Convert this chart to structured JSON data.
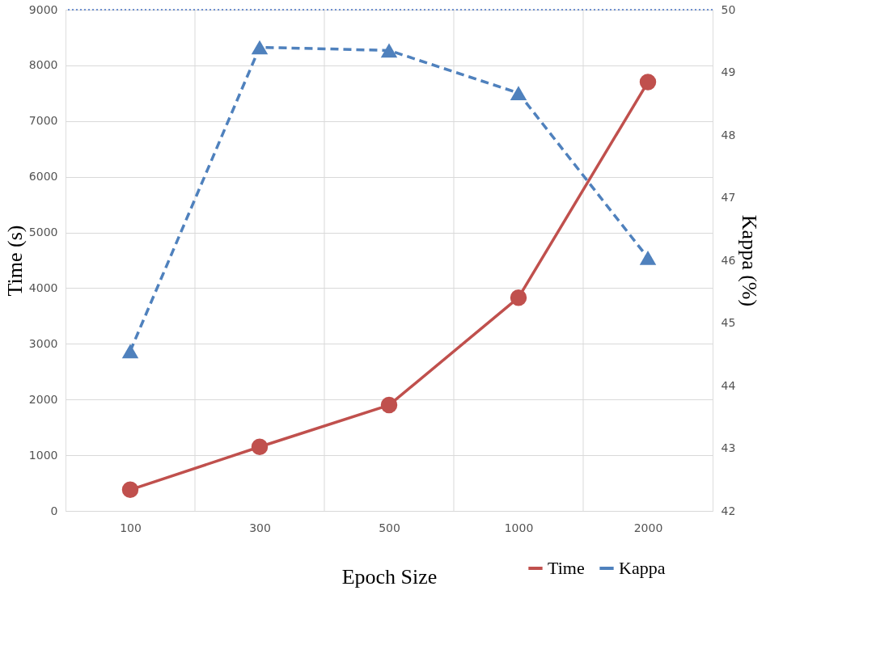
{
  "chart_data": {
    "type": "line",
    "xlabel": "Epoch Size",
    "ylabel": "Time (s)",
    "y2label": "Kappa (%)",
    "categories": [
      "100",
      "300",
      "500",
      "1000",
      "2000"
    ],
    "series": [
      {
        "name": "Time",
        "color": "#c0504d",
        "values": [
          380,
          1150,
          1900,
          3830,
          7700
        ],
        "marker": "circle",
        "line_style": "solid"
      },
      {
        "name": "Kappa",
        "color": "#4f81bd",
        "values": [
          44.55,
          49.4,
          49.35,
          48.67,
          46.04
        ],
        "axis": "y2",
        "marker": "triangle",
        "line_style": "dashed"
      }
    ],
    "ylim": [
      0,
      9000
    ],
    "yticks": [
      0,
      1000,
      2000,
      3000,
      4000,
      5000,
      6000,
      7000,
      8000,
      9000
    ],
    "y2lim": [
      42,
      50
    ],
    "y2ticks": [
      42,
      43,
      44,
      45,
      46,
      47,
      48,
      49,
      50
    ],
    "ref_lines": [
      {
        "axis": "y2",
        "value": 50,
        "label": null,
        "color": "#4472c4",
        "line_style": "dotted"
      }
    ],
    "grid": true,
    "legend": "bottom right"
  }
}
